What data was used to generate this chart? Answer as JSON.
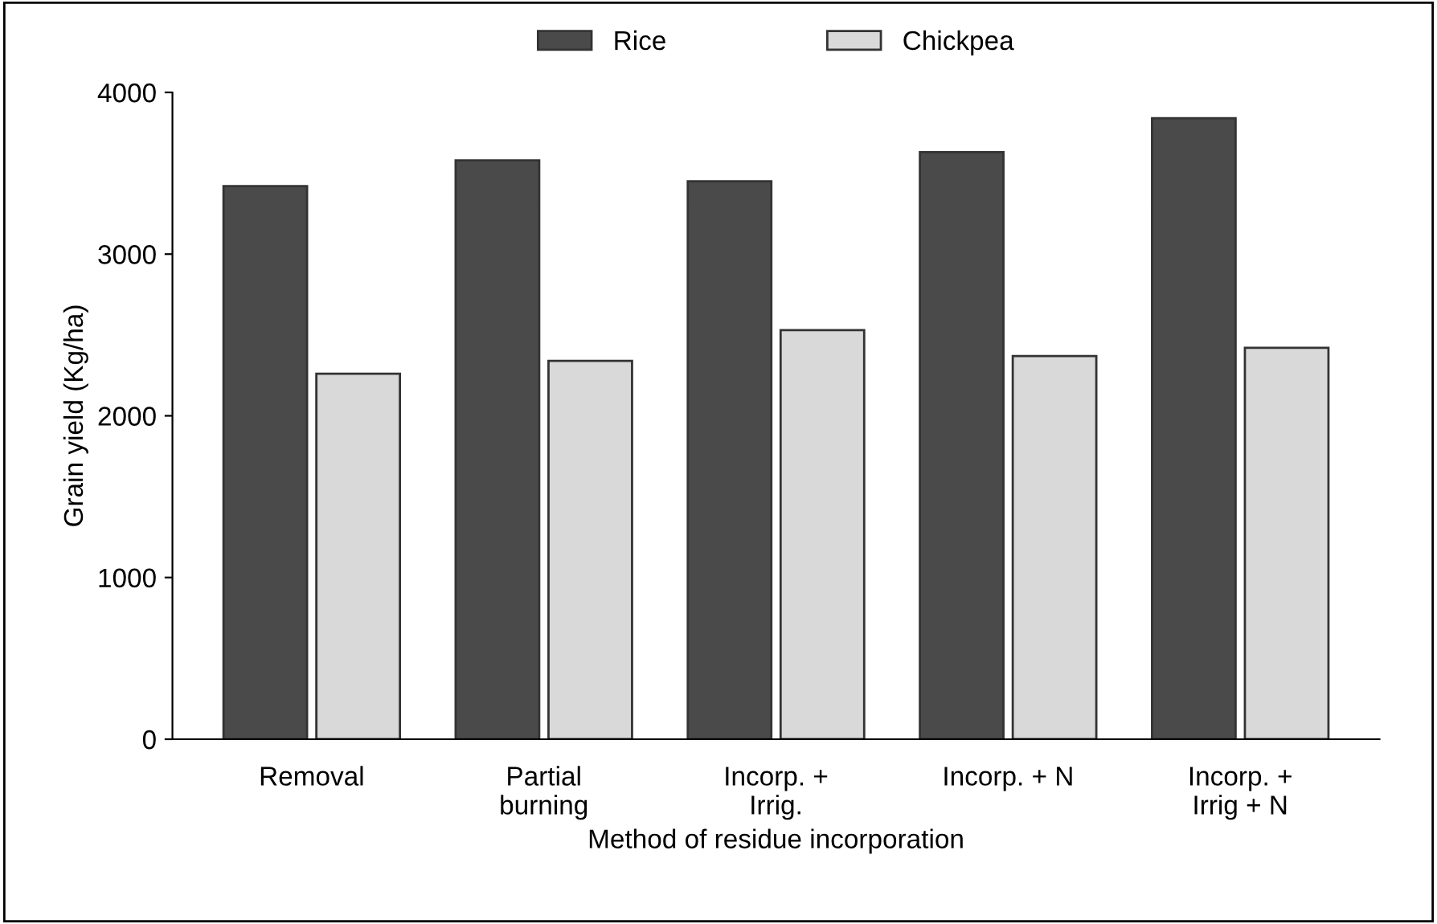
{
  "chart_data": {
    "type": "bar",
    "xlabel": "Method of residue incorporation",
    "ylabel": "Grain yield (Kg/ha)",
    "categories": [
      "Removal",
      "Partial\nburning",
      "Incorp. +\nIrrig.",
      "Incorp. + N",
      "Incorp. +\nIrrig + N"
    ],
    "series": [
      {
        "name": "Rice",
        "color": "#4a4a4a",
        "values": [
          3420,
          3580,
          3450,
          3630,
          3840
        ]
      },
      {
        "name": "Chickpea",
        "color": "#d9d9d9",
        "values": [
          2260,
          2340,
          2530,
          2370,
          2420
        ]
      }
    ],
    "ylim": [
      0,
      4000
    ],
    "yticks": [
      0,
      1000,
      2000,
      3000,
      4000
    ],
    "grid": false,
    "legend": "top"
  }
}
